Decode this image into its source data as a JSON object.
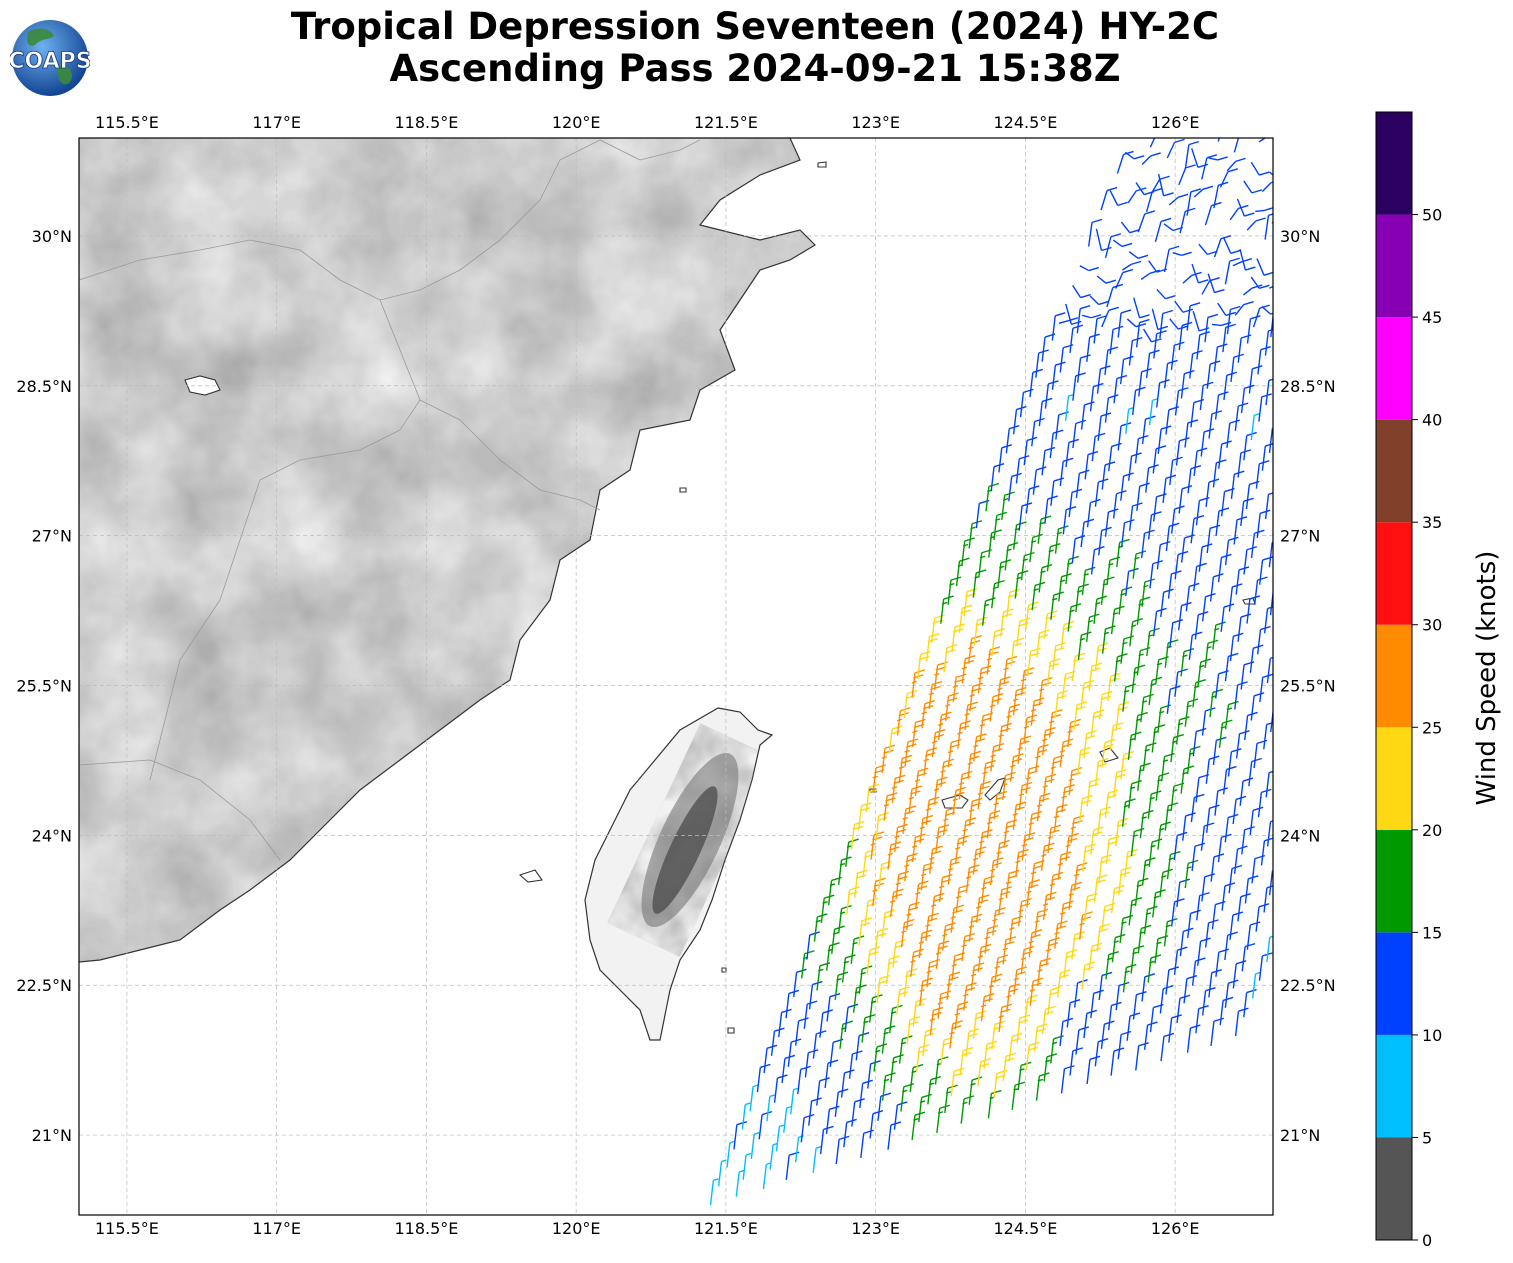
{
  "header": {
    "title_line1": "Tropical Depression Seventeen (2024) HY-2C",
    "title_line2": "Ascending Pass 2024-09-21 15:38Z",
    "logo_text": "COAPS"
  },
  "map": {
    "lon_labels": [
      "115.5°E",
      "117°E",
      "118.5°E",
      "120°E",
      "121.5°E",
      "123°E",
      "124.5°E",
      "126°E"
    ],
    "lat_labels": [
      "30°N",
      "28.5°N",
      "27°N",
      "25.5°N",
      "24°N",
      "22.5°N",
      "21°N"
    ],
    "lon_values": [
      115.5,
      117,
      118.5,
      120,
      121.5,
      123,
      124.5,
      126
    ],
    "lat_values": [
      30,
      28.5,
      27,
      25.5,
      24,
      22.5,
      21
    ],
    "extent": {
      "lon_min": 115.02,
      "lon_max": 126.98,
      "lat_min": 20.2,
      "lat_max": 30.98
    }
  },
  "colorbar": {
    "title": "Wind Speed (knots)",
    "tick_labels": [
      "0",
      "5",
      "10",
      "15",
      "20",
      "25",
      "30",
      "35",
      "40",
      "45",
      "50"
    ],
    "bins": [
      {
        "min": 0,
        "max": 5,
        "color": "#555555"
      },
      {
        "min": 5,
        "max": 10,
        "color": "#00bfff"
      },
      {
        "min": 10,
        "max": 15,
        "color": "#0040ff"
      },
      {
        "min": 15,
        "max": 20,
        "color": "#009900"
      },
      {
        "min": 20,
        "max": 25,
        "color": "#ffd814"
      },
      {
        "min": 25,
        "max": 30,
        "color": "#ff8c00"
      },
      {
        "min": 30,
        "max": 35,
        "color": "#ff1010"
      },
      {
        "min": 35,
        "max": 40,
        "color": "#80402a"
      },
      {
        "min": 40,
        "max": 45,
        "color": "#ff00ff"
      },
      {
        "min": 45,
        "max": 50,
        "color": "#8800b4"
      },
      {
        "min": 50,
        "max": 55,
        "color": "#2a0060"
      }
    ]
  },
  "colors": {
    "coast": "#333333",
    "border": "#999999",
    "grid": "#bbbbbb"
  }
}
